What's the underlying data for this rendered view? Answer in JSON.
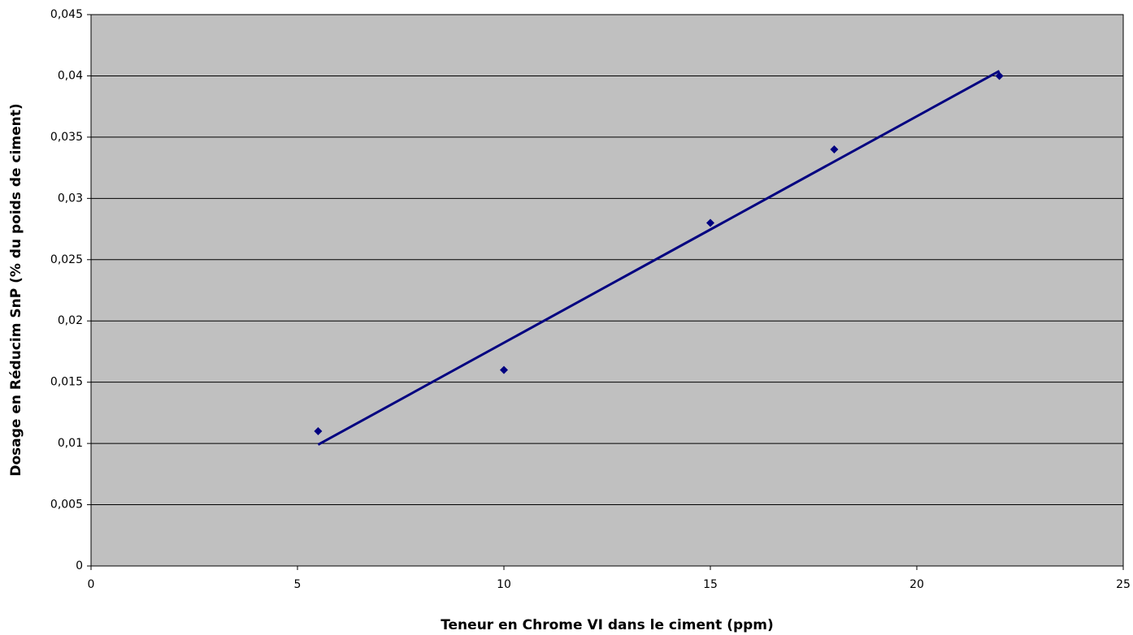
{
  "chart_data": {
    "type": "scatter",
    "x_label": "Teneur en Chrome VI  dans le ciment (ppm)",
    "y_label": "Dosage en Réducim SnP (% du poids de ciment)",
    "series": [
      {
        "color": "#000080",
        "x": [
          5.5,
          10,
          15,
          18,
          22
        ],
        "values": [
          0.011,
          0.016,
          0.028,
          0.034,
          0.04
        ]
      }
    ],
    "trendline": {
      "color": "#000080",
      "x": [
        5.5,
        22
      ],
      "values": [
        0.0099,
        0.0404
      ]
    },
    "xlim": [
      0,
      25
    ],
    "xticks": [
      0,
      5,
      10,
      15,
      20,
      25
    ],
    "ylim": [
      0,
      0.045
    ],
    "yticks": [
      0,
      {
        "value": 0.005,
        "label": "0,005"
      },
      {
        "value": 0.01,
        "label": "0,01"
      },
      {
        "value": 0.015,
        "label": "0,015"
      },
      {
        "value": 0.02,
        "label": "0,02"
      },
      {
        "value": 0.025,
        "label": "0,025"
      },
      {
        "value": 0.03,
        "label": "0,03"
      },
      {
        "value": 0.035,
        "label": "0,035"
      },
      {
        "value": 0.04,
        "label": "0,04"
      },
      {
        "value": 0.045,
        "label": "0,045"
      }
    ],
    "grid": true,
    "plot_background": "#c0c0c0"
  }
}
